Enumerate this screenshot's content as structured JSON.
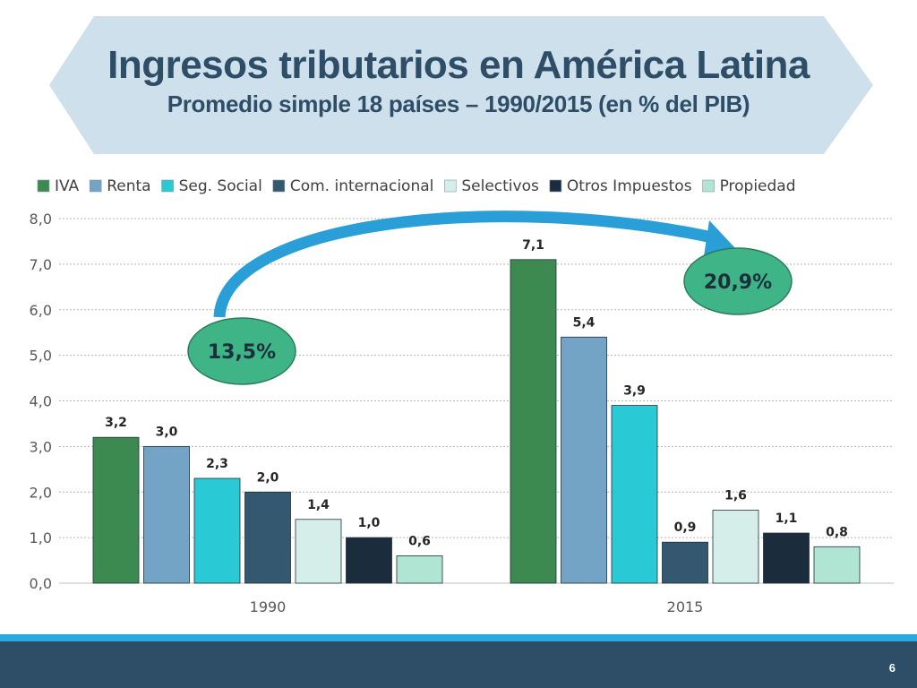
{
  "slide": {
    "title": "Ingresos tributarios en América Latina",
    "subtitle": "Promedio simple 18 países – 1990/2015 (en % del PIB)",
    "page_number": "6"
  },
  "colors": {
    "banner": "#cde0eb",
    "title": "#2e4e68",
    "callout": "#3fb587",
    "arrow": "#2a9ed6",
    "footer": "#2e4e68",
    "footer_stripe": "#29a9e0"
  },
  "callouts": [
    {
      "label": "13,5%",
      "year": "1990"
    },
    {
      "label": "20,9%",
      "year": "2015"
    }
  ],
  "chart_data": {
    "type": "bar",
    "title": "",
    "xlabel": "",
    "ylabel": "",
    "ylim": [
      0,
      8
    ],
    "yticks": [
      "0,0",
      "1,0",
      "2,0",
      "3,0",
      "4,0",
      "5,0",
      "6,0",
      "7,0",
      "8,0"
    ],
    "grid": true,
    "legend_position": "top",
    "categories": [
      "1990",
      "2015"
    ],
    "series": [
      {
        "name": "IVA",
        "color": "#3d8a50",
        "values": [
          3.2,
          7.1
        ],
        "labels": [
          "3,2",
          "7,1"
        ]
      },
      {
        "name": "Renta",
        "color": "#73a4c6",
        "values": [
          3.0,
          5.4
        ],
        "labels": [
          "3,0",
          "5,4"
        ]
      },
      {
        "name": "Seg. Social",
        "color": "#29c9d6",
        "values": [
          2.3,
          3.9
        ],
        "labels": [
          "2,3",
          "3,9"
        ]
      },
      {
        "name": "Com. internacional",
        "color": "#34586f",
        "values": [
          2.0,
          0.9
        ],
        "labels": [
          "2,0",
          "0,9"
        ]
      },
      {
        "name": "Selectivos",
        "color": "#d6eee9",
        "values": [
          1.4,
          1.6
        ],
        "labels": [
          "1,4",
          "1,6"
        ]
      },
      {
        "name": "Otros Impuestos",
        "color": "#1b2d3c",
        "values": [
          1.0,
          1.1
        ],
        "labels": [
          "1,0",
          "1,1"
        ]
      },
      {
        "name": "Propiedad",
        "color": "#b0e4d3",
        "values": [
          0.6,
          0.8
        ],
        "labels": [
          "0,6",
          "0,8"
        ]
      }
    ]
  }
}
